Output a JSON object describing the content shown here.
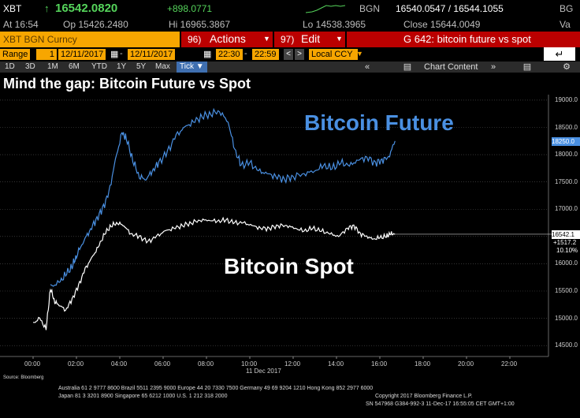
{
  "header": {
    "ticker": "XBT",
    "last": "16542.0820",
    "change": "+898.0771",
    "source": "BGN",
    "bid_ask": "16540.0547 / 16544.1055",
    "source2": "BG",
    "at": "At 16:54",
    "open": "Op 15426.2480",
    "high": "Hi 16965.3867",
    "low": "Lo 14538.3965",
    "close": "Close 15644.0049",
    "va": "Va"
  },
  "toolbar": {
    "security": "XBT BGN Curncy",
    "actions": "Actions",
    "actions_num": "96)",
    "edit": "Edit",
    "edit_num": "97)",
    "g_label": "G 642: bitcoin future vs spot"
  },
  "range": {
    "label": "Range",
    "num": "1",
    "start_date": "12/11/2017",
    "end_date": "12/11/2017",
    "start_time": "22:30",
    "end_time": "22:59",
    "currency": "Local CCY"
  },
  "tabs": [
    "1D",
    "3D",
    "1M",
    "6M",
    "YTD",
    "1Y",
    "5Y",
    "Max"
  ],
  "tick_label": "Tick",
  "nav": {
    "chart_content": "Chart Content"
  },
  "chart_data": {
    "type": "line",
    "title": "Mind the gap: Bitcoin Future vs Spot",
    "x_date_label": "11 Dec 2017",
    "x_ticks": [
      "00:00",
      "02:00",
      "04:00",
      "06:00",
      "08:00",
      "10:00",
      "12:00",
      "14:00",
      "16:00",
      "18:00",
      "20:00",
      "22:00"
    ],
    "y_ticks": [
      "19000.0",
      "18500.0",
      "18000.0",
      "17500.0",
      "17000.0",
      "16500.0",
      "16000.0",
      "15500.0",
      "15000.0",
      "14500.0"
    ],
    "ylim": [
      14300,
      19100
    ],
    "series": [
      {
        "name": "Bitcoin Future",
        "color": "#4a90e2",
        "last_label": "18250.0",
        "points": [
          [
            0.8,
            15580
          ],
          [
            1.2,
            15650
          ],
          [
            1.5,
            15800
          ],
          [
            1.8,
            15950
          ],
          [
            2.0,
            16150
          ],
          [
            2.3,
            16400
          ],
          [
            2.6,
            16600
          ],
          [
            2.9,
            16800
          ],
          [
            3.2,
            17000
          ],
          [
            3.5,
            17300
          ],
          [
            3.8,
            17900
          ],
          [
            4.1,
            18400
          ],
          [
            4.3,
            18300
          ],
          [
            4.6,
            17900
          ],
          [
            4.9,
            17600
          ],
          [
            5.2,
            17550
          ],
          [
            5.5,
            17700
          ],
          [
            5.8,
            17850
          ],
          [
            6.2,
            18050
          ],
          [
            6.6,
            18350
          ],
          [
            7.0,
            18500
          ],
          [
            7.4,
            18600
          ],
          [
            7.8,
            18700
          ],
          [
            8.2,
            18750
          ],
          [
            8.6,
            18800
          ],
          [
            9.0,
            18600
          ],
          [
            9.3,
            18100
          ],
          [
            9.6,
            17800
          ],
          [
            10.0,
            17850
          ],
          [
            10.4,
            17700
          ],
          [
            10.8,
            17650
          ],
          [
            11.2,
            17600
          ],
          [
            11.6,
            17550
          ],
          [
            12.0,
            17600
          ],
          [
            12.5,
            17650
          ],
          [
            13.0,
            17700
          ],
          [
            13.4,
            17800
          ],
          [
            13.8,
            17750
          ],
          [
            14.2,
            17850
          ],
          [
            14.6,
            17800
          ],
          [
            15.0,
            17900
          ],
          [
            15.4,
            17950
          ],
          [
            15.8,
            17850
          ],
          [
            16.1,
            17900
          ],
          [
            16.4,
            17950
          ],
          [
            16.7,
            18250
          ]
        ]
      },
      {
        "name": "Bitcoin Spot",
        "color": "#ffffff",
        "last_label": "16542.1",
        "points": [
          [
            0.0,
            14900
          ],
          [
            0.3,
            15000
          ],
          [
            0.6,
            14800
          ],
          [
            0.8,
            15550
          ],
          [
            1.0,
            15300
          ],
          [
            1.2,
            15250
          ],
          [
            1.5,
            15150
          ],
          [
            1.8,
            15350
          ],
          [
            2.1,
            15600
          ],
          [
            2.4,
            15900
          ],
          [
            2.7,
            16100
          ],
          [
            3.0,
            16300
          ],
          [
            3.3,
            16550
          ],
          [
            3.6,
            16700
          ],
          [
            3.9,
            16750
          ],
          [
            4.2,
            16700
          ],
          [
            4.5,
            16550
          ],
          [
            4.9,
            16500
          ],
          [
            5.3,
            16400
          ],
          [
            5.7,
            16500
          ],
          [
            6.1,
            16600
          ],
          [
            6.5,
            16650
          ],
          [
            6.9,
            16700
          ],
          [
            7.3,
            16750
          ],
          [
            7.7,
            16800
          ],
          [
            8.1,
            16800
          ],
          [
            8.5,
            16780
          ],
          [
            8.9,
            16800
          ],
          [
            9.3,
            16750
          ],
          [
            9.7,
            16750
          ],
          [
            10.1,
            16700
          ],
          [
            10.5,
            16650
          ],
          [
            10.9,
            16650
          ],
          [
            11.3,
            16700
          ],
          [
            11.7,
            16700
          ],
          [
            12.1,
            16650
          ],
          [
            12.5,
            16600
          ],
          [
            12.9,
            16650
          ],
          [
            13.3,
            16600
          ],
          [
            13.7,
            16550
          ],
          [
            14.1,
            16500
          ],
          [
            14.5,
            16650
          ],
          [
            14.8,
            16700
          ],
          [
            15.1,
            16550
          ],
          [
            15.4,
            16500
          ],
          [
            15.7,
            16450
          ],
          [
            16.0,
            16480
          ],
          [
            16.3,
            16500
          ],
          [
            16.5,
            16550
          ],
          [
            16.7,
            16542
          ]
        ]
      }
    ],
    "annotations": [
      {
        "text": "Bitcoin Future",
        "color": "#4a90e2"
      },
      {
        "text": "Bitcoin Spot",
        "color": "#ffffff"
      }
    ],
    "side_labels": {
      "spot_change": "+1517.2",
      "spot_pct": "10.10%"
    }
  },
  "footer": {
    "source": "Source: Bloomberg",
    "line1": "Australia 61 2 9777 8600 Brazil 5511 2395 9000 Europe 44 20 7330 7500 Germany 49 69 9204 1210 Hong Kong 852 2977 6000",
    "line2": "Japan 81 3 3201 8900         Singapore 65 6212 1000         U.S. 1 212 318 2000",
    "line3": "Copyright 2017 Bloomberg Finance L.P.",
    "line4": "SN 547968 G384-992-3 11-Dec-17 16:55:05 CET  GMT+1:00"
  }
}
